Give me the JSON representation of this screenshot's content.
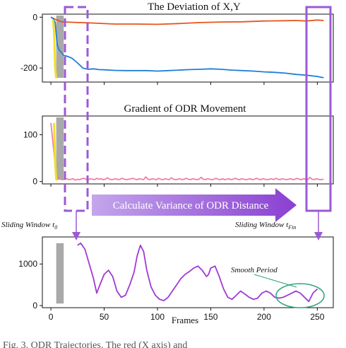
{
  "chart_data": [
    {
      "type": "line",
      "title": "The Deviation of X,Y",
      "xlim": [
        -8,
        265
      ],
      "ylim": [
        -255,
        12
      ],
      "yticks": [
        0,
        -200
      ],
      "x_ticks_shown": [
        0,
        50,
        100,
        150,
        200,
        250
      ],
      "series": [
        {
          "color": "#e8541d",
          "x": [
            0,
            5,
            10,
            20,
            40,
            60,
            80,
            100,
            120,
            140,
            160,
            180,
            200,
            220,
            230,
            240,
            250,
            256
          ],
          "y": [
            0,
            -10,
            -18,
            -20,
            -23,
            -27,
            -27,
            -28,
            -25,
            -21,
            -19,
            -18,
            -15,
            -14,
            -13,
            -15,
            -11,
            -13
          ]
        },
        {
          "color": "#1f7fd6",
          "x": [
            0,
            2,
            4,
            6,
            8,
            10,
            12,
            14,
            16,
            18,
            20,
            25,
            30,
            35,
            40,
            45,
            50,
            60,
            70,
            80,
            90,
            100,
            110,
            120,
            130,
            140,
            150,
            160,
            170,
            180,
            190,
            200,
            210,
            220,
            230,
            240,
            250,
            256
          ],
          "y": [
            0,
            -5,
            -20,
            -110,
            -130,
            -140,
            -150,
            -152,
            -155,
            -158,
            -162,
            -180,
            -200,
            -205,
            -203,
            -206,
            -207,
            -209,
            -210,
            -210,
            -210,
            -212,
            -210,
            -208,
            -206,
            -205,
            -203,
            -205,
            -208,
            -210,
            -212,
            -215,
            -217,
            -220,
            -225,
            -228,
            -233,
            -238
          ]
        },
        {
          "color": "#f0e02a",
          "x": [
            2,
            3,
            4,
            5
          ],
          "y": [
            -10,
            -60,
            -200,
            -240
          ]
        }
      ]
    },
    {
      "type": "line",
      "title": "Gradient of ODR Movement",
      "xlim": [
        -8,
        265
      ],
      "ylim": [
        -5,
        140
      ],
      "yticks": [
        0,
        100
      ],
      "series": [
        {
          "color": "#f07da7",
          "x": [
            0,
            3,
            5,
            7,
            9,
            11,
            13,
            15,
            17,
            19,
            21,
            23,
            25,
            27,
            29,
            31,
            33,
            35,
            37,
            39,
            41,
            43,
            45,
            47,
            49,
            51,
            53,
            55,
            57,
            59,
            61,
            63,
            65,
            67,
            69,
            71,
            73,
            75,
            77,
            79,
            81,
            83,
            85,
            87,
            89,
            91,
            93,
            95,
            97,
            99,
            101,
            103,
            105,
            107,
            109,
            111,
            113,
            115,
            117,
            119,
            121,
            123,
            125,
            127,
            129,
            131,
            133,
            135,
            137,
            139,
            141,
            143,
            145,
            147,
            149,
            151,
            153,
            155,
            157,
            159,
            161,
            163,
            165,
            167,
            169,
            171,
            173,
            175,
            177,
            179,
            181,
            183,
            185,
            187,
            189,
            191,
            193,
            195,
            197,
            199,
            201,
            203,
            205,
            207,
            209,
            211,
            213,
            215,
            217,
            219,
            221,
            223,
            225,
            227,
            229,
            231,
            233,
            235,
            237,
            239,
            241,
            243,
            245,
            247,
            249,
            251,
            253,
            256
          ],
          "y": [
            125,
            60,
            10,
            6,
            5,
            4,
            5,
            6,
            4,
            5,
            6,
            3,
            5,
            4,
            6,
            7,
            5,
            4,
            6,
            5,
            4,
            7,
            5,
            6,
            4,
            5,
            8,
            5,
            4,
            5,
            6,
            4,
            5,
            7,
            5,
            4,
            5,
            6,
            7,
            5,
            4,
            6,
            5,
            4,
            10,
            5,
            4,
            6,
            5,
            4,
            7,
            5,
            4,
            6,
            5,
            4,
            8,
            5,
            4,
            5,
            6,
            4,
            5,
            7,
            5,
            4,
            6,
            5,
            4,
            5,
            9,
            5,
            4,
            6,
            5,
            4,
            5,
            7,
            5,
            4,
            6,
            4,
            5,
            6,
            4,
            5,
            7,
            5,
            4,
            6,
            5,
            4,
            5,
            6,
            4,
            5,
            7,
            5,
            4,
            6,
            5,
            4,
            5,
            6,
            4,
            7,
            5,
            4,
            6,
            5,
            4,
            5,
            6,
            4,
            5,
            7,
            5,
            4,
            6,
            5,
            4,
            9,
            5,
            4,
            6,
            5,
            4,
            5
          ]
        },
        {
          "color": "#f0e02a",
          "x": [
            3,
            4,
            5,
            6
          ],
          "y": [
            125,
            40,
            5,
            2
          ]
        }
      ]
    },
    {
      "type": "line",
      "title": "",
      "xlabel": "Frames",
      "xlim": [
        -8,
        265
      ],
      "ylim": [
        -50,
        1650
      ],
      "xticks": [
        0,
        50,
        100,
        150,
        200,
        250
      ],
      "yticks": [
        0,
        1000
      ],
      "series": [
        {
          "color": "#a03ad4",
          "x": [
            25,
            28,
            32,
            36,
            40,
            43,
            46,
            50,
            54,
            58,
            62,
            66,
            70,
            74,
            78,
            81,
            84,
            87,
            90,
            94,
            98,
            102,
            106,
            110,
            114,
            118,
            122,
            126,
            130,
            134,
            138,
            142,
            146,
            148,
            150,
            154,
            158,
            162,
            166,
            170,
            174,
            178,
            182,
            186,
            190,
            194,
            198,
            202,
            206,
            210,
            214,
            218,
            222,
            226,
            230,
            234,
            238,
            242,
            246,
            250
          ],
          "y": [
            1450,
            1500,
            1350,
            1000,
            650,
            300,
            500,
            750,
            850,
            700,
            350,
            200,
            250,
            500,
            800,
            1200,
            1450,
            1300,
            850,
            450,
            250,
            150,
            120,
            200,
            350,
            500,
            650,
            750,
            820,
            900,
            950,
            850,
            700,
            750,
            900,
            950,
            700,
            400,
            200,
            150,
            250,
            350,
            280,
            200,
            150,
            180,
            300,
            350,
            300,
            200,
            180,
            200,
            250,
            300,
            350,
            300,
            200,
            100,
            300,
            400
          ]
        }
      ],
      "annotations": [
        "Smooth Period"
      ]
    }
  ],
  "labels": {
    "sliding_window_start": "Sliding Window t",
    "sliding_window_start_sub": "0",
    "sliding_window_end": "Sliding Window t",
    "sliding_window_end_sub": "Fin",
    "banner": "Calculate Variance of  ODR Distance",
    "caption": "Fig. 3.   ODR Trajectories. The red (X axis) and"
  },
  "colors": {
    "purple": "#9b59d6",
    "banner_start": "#c3a6ec",
    "banner_end": "#8a3fd1",
    "gray_window": "#a9a9a9"
  }
}
